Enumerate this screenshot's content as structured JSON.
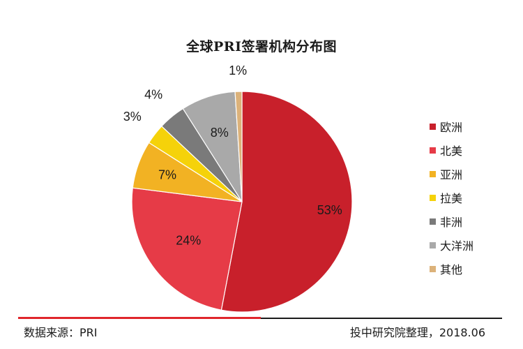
{
  "chart_data": {
    "type": "pie",
    "title": "全球PRI签署机构分布图",
    "categories": [
      "欧洲",
      "北美",
      "亚洲",
      "拉美",
      "非洲",
      "大洋洲",
      "其他"
    ],
    "values": [
      53,
      24,
      7,
      3,
      4,
      8,
      1
    ],
    "value_labels": [
      "53%",
      "24%",
      "7%",
      "3%",
      "4%",
      "8%",
      "1%"
    ],
    "unit": "%",
    "colors": [
      "#c8202b",
      "#e63b47",
      "#f2b223",
      "#f5d20a",
      "#7a7a7a",
      "#a9a9a9",
      "#dcb27a"
    ],
    "legend_position": "right"
  },
  "footer": {
    "source": "数据来源：PRI",
    "credit": "投中研究院整理，2018.06"
  }
}
